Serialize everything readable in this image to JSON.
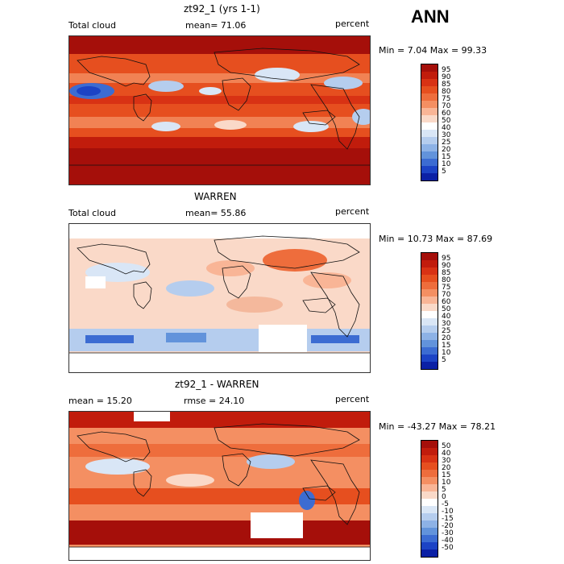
{
  "season": "ANN",
  "panels": [
    {
      "title": "zt92_1 (yrs 1-1)",
      "left_label": "Total cloud",
      "mean_label": "mean=  71.06",
      "units": "percent",
      "minmax": "Min =   7.04 Max =  99.33",
      "colorbar_levels": [
        "95",
        "90",
        "85",
        "80",
        "75",
        "70",
        "60",
        "50",
        "40",
        "30",
        "25",
        "20",
        "15",
        "10",
        "5"
      ],
      "colorbar_colors": [
        "#a50f0a",
        "#c11c0c",
        "#d83214",
        "#e64f1f",
        "#ee6d3c",
        "#f48f62",
        "#f9b596",
        "#fad9c8",
        "#ffffff",
        "#d9e6f6",
        "#b5cdee",
        "#8db2e6",
        "#6293db",
        "#3c6cd2",
        "#1c43c5",
        "#0b20a5"
      ],
      "stats": {
        "mean": 71.06,
        "min": 7.04,
        "max": 99.33
      }
    },
    {
      "title": "WARREN",
      "left_label": "Total cloud",
      "mean_label": "mean=  55.86",
      "units": "percent",
      "minmax": "Min =  10.73 Max =  87.69",
      "colorbar_levels": [
        "95",
        "90",
        "85",
        "80",
        "75",
        "70",
        "60",
        "50",
        "40",
        "30",
        "25",
        "20",
        "15",
        "10",
        "5"
      ],
      "colorbar_colors": [
        "#a50f0a",
        "#c11c0c",
        "#d83214",
        "#e64f1f",
        "#ee6d3c",
        "#f48f62",
        "#f9b596",
        "#fad9c8",
        "#ffffff",
        "#d9e6f6",
        "#b5cdee",
        "#8db2e6",
        "#6293db",
        "#3c6cd2",
        "#1c43c5",
        "#0b20a5"
      ],
      "stats": {
        "mean": 55.86,
        "min": 10.73,
        "max": 87.69
      }
    },
    {
      "title": "zt92_1 - WARREN",
      "left_label": "mean =  15.20",
      "mean_label": "rmse =  24.10",
      "units": "percent",
      "minmax": "Min = -43.27 Max =  78.21",
      "colorbar_levels": [
        "50",
        "40",
        "30",
        "20",
        "15",
        "10",
        "5",
        "0",
        "-5",
        "-10",
        "-15",
        "-20",
        "-30",
        "-40",
        "-50"
      ],
      "colorbar_colors": [
        "#a50f0a",
        "#c11c0c",
        "#d83214",
        "#e64f1f",
        "#ee6d3c",
        "#f48f62",
        "#f9b596",
        "#fad9c8",
        "#ffffff",
        "#d9e6f6",
        "#b5cdee",
        "#8db2e6",
        "#6293db",
        "#3c6cd2",
        "#1c43c5",
        "#0b20a5"
      ],
      "stats": {
        "mean": 15.2,
        "rmse": 24.1,
        "min": -43.27,
        "max": 78.21
      }
    }
  ]
}
